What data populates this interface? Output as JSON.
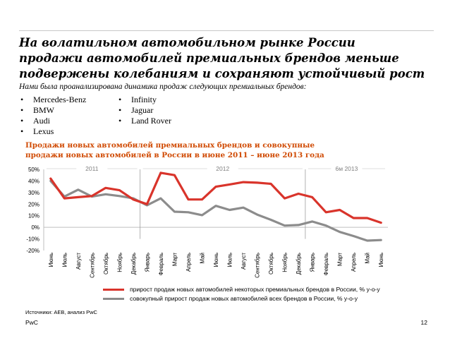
{
  "slide": {
    "title_lines": [
      "На волатильном автомобильном рынке России",
      "продажи автомобилей премиальных брендов меньше",
      "подвержены колебаниям и сохраняют устойчивый рост"
    ],
    "subtitle": "Нами была проанализирована динамика продаж следующих премиальных брендов:",
    "brands_col1": [
      "Mercedes-Benz",
      "BMW",
      "Audi",
      "Lexus"
    ],
    "brands_col2": [
      "Infinity",
      "Jaguar",
      "Land Rover"
    ],
    "chart_title_lines": [
      "Продажи новых автомобилей премиальных брендов и совокупные",
      "продажи новых автомобилей в России в июне 2011 – июне 2013 года"
    ],
    "source": "Источники: AEB, анализ PwC",
    "footer": "PwC",
    "page_number": "12"
  },
  "colors": {
    "accent": "#d04a02",
    "premium_series": "#d9342b",
    "total_series": "#8c8c8c",
    "grid": "#d9d9d9"
  },
  "chart_data": {
    "type": "line",
    "title": "Продажи новых автомобилей премиальных брендов и совокупные продажи новых автомобилей в России в июне 2011 – июне 2013 года",
    "categories": [
      "Июнь",
      "Июль",
      "Август",
      "Сентябрь",
      "Октябрь",
      "Ноябрь",
      "Декабрь",
      "Январь",
      "Февраль",
      "Март",
      "Апрель",
      "Май",
      "Июнь",
      "Июль",
      "Август",
      "Сентябрь",
      "Октябрь",
      "Ноябрь",
      "Декабрь",
      "Январь",
      "Февраль",
      "Март",
      "Апрель",
      "Май",
      "Июнь"
    ],
    "period_labels": [
      {
        "label": "2011",
        "start": 0,
        "end": 6
      },
      {
        "label": "2012",
        "start": 7,
        "end": 18
      },
      {
        "label": "6м 2013",
        "start": 19,
        "end": 24
      }
    ],
    "series": [
      {
        "name": "прирост продаж новых автомобилей некоторых премиальных брендов в России, % у-о-у",
        "color": "#d9342b",
        "values": [
          42,
          25,
          26,
          27,
          34,
          32,
          24,
          20,
          47,
          45,
          24,
          24,
          35,
          37,
          39,
          38.5,
          37.5,
          25,
          29,
          26,
          13,
          15,
          8,
          8,
          4
        ]
      },
      {
        "name": "совокупный прирост продаж новых автомобилей всех брендов в России, % у-о-у",
        "color": "#8c8c8c",
        "values": [
          40,
          26.5,
          32.5,
          26.5,
          28.5,
          27,
          25,
          19,
          25,
          13.5,
          13,
          10.5,
          18.5,
          15,
          17,
          11,
          6.5,
          1.5,
          2,
          5,
          1.5,
          -4,
          -7.5,
          -11.5,
          -11
        ]
      }
    ],
    "ylim": [
      -20,
      50
    ],
    "yticks": [
      -20,
      -10,
      0,
      10,
      20,
      30,
      40,
      50
    ],
    "ytick_labels": [
      "-20%",
      "-10%",
      "0%",
      "10%",
      "20%",
      "30%",
      "40%",
      "50%"
    ],
    "xlabel": "",
    "ylabel": "",
    "grid": false,
    "legend_position": "bottom"
  }
}
